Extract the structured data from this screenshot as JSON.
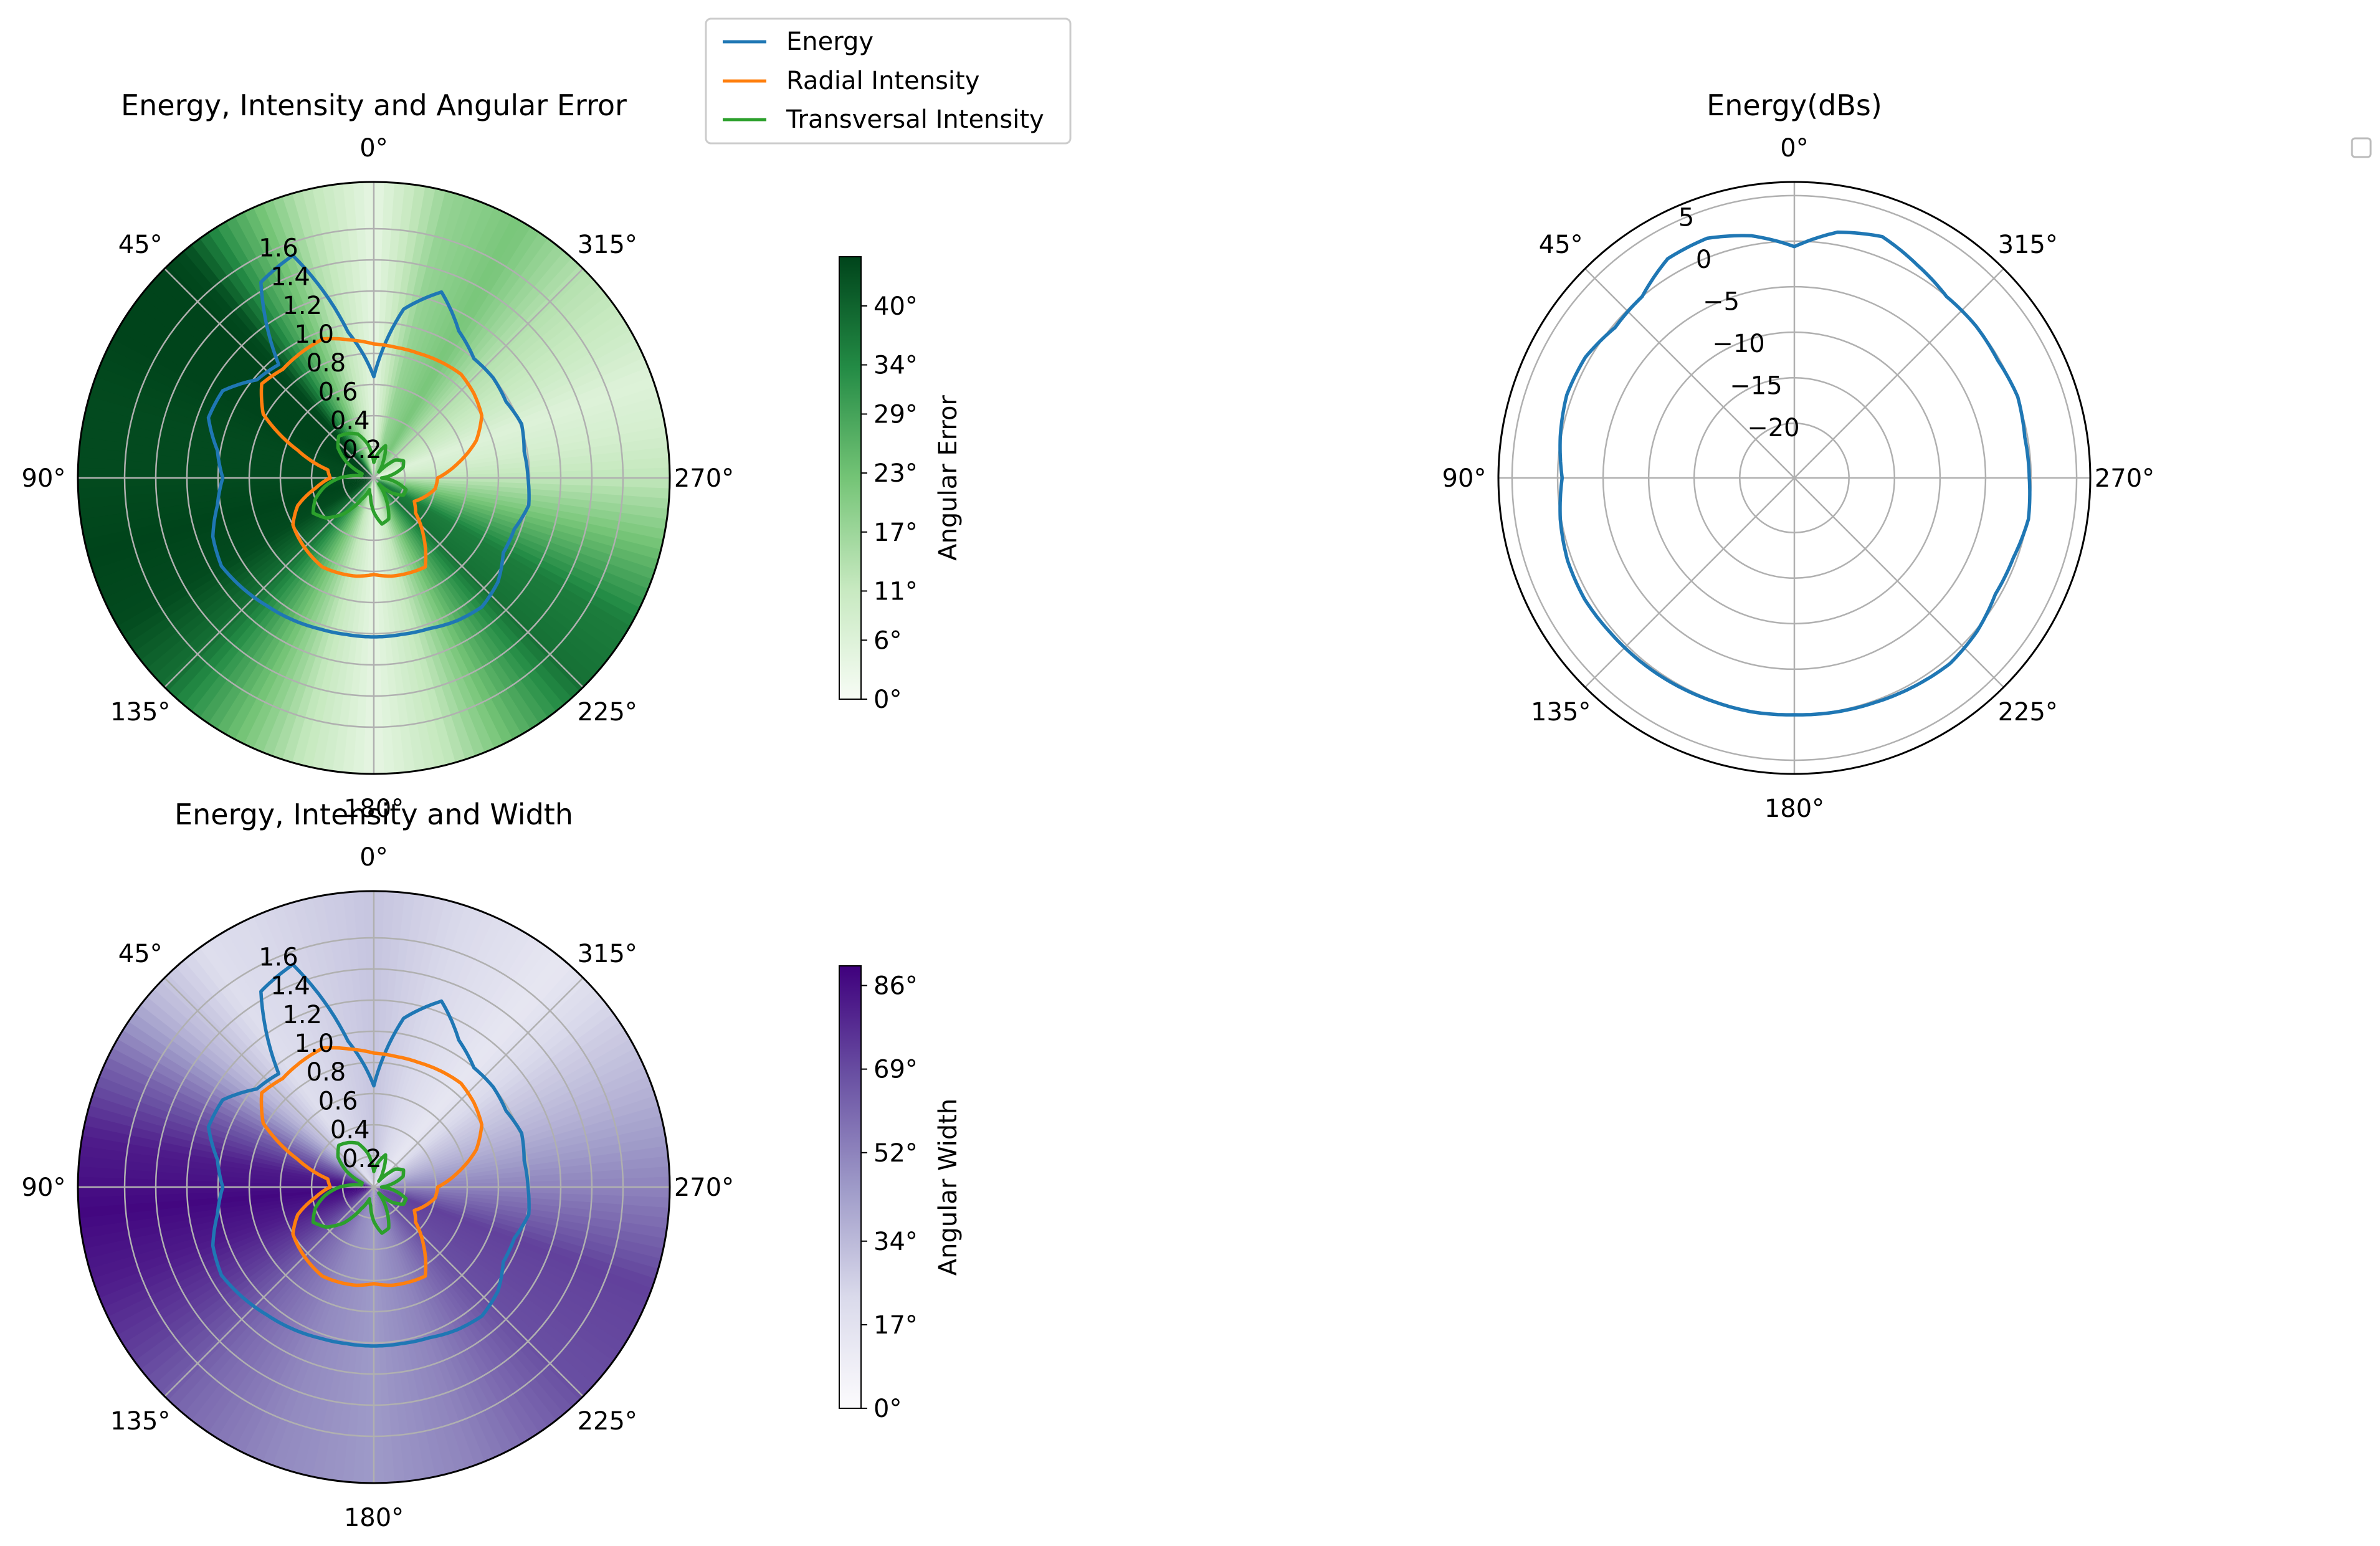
{
  "colors": {
    "energy": "#1f77b4",
    "radial": "#ff7f0e",
    "transversal": "#2ca02c",
    "grid": "#b0b0b0",
    "greens_low": "#f7fcf5",
    "greens_high": "#00441b",
    "purples_low": "#fcfbfd",
    "purples_high": "#3f007d"
  },
  "legend": {
    "entries": [
      "Energy",
      "Radial Intensity",
      "Transversal Intensity"
    ],
    "placement": "top-center"
  },
  "chart_data": [
    {
      "type": "polar-line-heatmap",
      "title": "Energy, Intensity and Angular Error",
      "angle_ticks": [
        "0°",
        "45°",
        "90°",
        "135°",
        "180°",
        "225°",
        "270°",
        "315°"
      ],
      "theta_direction": "counterclockwise",
      "theta_zero": "top",
      "radial_ticks": [
        "0.2",
        "0.4",
        "0.6",
        "0.8",
        "1.0",
        "1.2",
        "1.4",
        "1.6"
      ],
      "rlim": [
        0,
        1.9
      ],
      "grid": true,
      "series": [
        {
          "name": "Energy",
          "curve": "energy"
        },
        {
          "name": "Radial Intensity",
          "curve": "radial"
        },
        {
          "name": "Transversal Intensity",
          "curve": "transversal"
        }
      ],
      "background": {
        "colormap": "Greens",
        "angle_deg": [
          0,
          15,
          30,
          40,
          50,
          60,
          75,
          90,
          105,
          120,
          135,
          150,
          165,
          180,
          195,
          210,
          225,
          240,
          255,
          270,
          280,
          290,
          300,
          315,
          330,
          345,
          360
        ],
        "values_deg": [
          4,
          14,
          30,
          44,
          46,
          45,
          44,
          44,
          45,
          44,
          38,
          25,
          12,
          4,
          12,
          26,
          38,
          36,
          24,
          12,
          8,
          6,
          10,
          14,
          22,
          18,
          4
        ]
      },
      "colorbar": {
        "label": "Angular Error",
        "ticks": [
          "0°",
          "6°",
          "11°",
          "17°",
          "23°",
          "29°",
          "34°",
          "40°"
        ],
        "range": [
          0,
          45
        ]
      }
    },
    {
      "type": "polar-line",
      "title": "Energy(dBs)",
      "angle_ticks": [
        "0°",
        "45°",
        "90°",
        "135°",
        "180°",
        "225°",
        "270°",
        "315°"
      ],
      "theta_direction": "counterclockwise",
      "theta_zero": "top",
      "radial_ticks": [
        "5",
        "0",
        "−5",
        "−10",
        "−15",
        "−20"
      ],
      "radial_values": [
        5,
        0,
        -5,
        -10,
        -15,
        -20
      ],
      "rlim": [
        -26,
        6.5
      ],
      "grid": true,
      "series": [
        {
          "curve": "energy_db"
        }
      ]
    },
    {
      "type": "polar-line-heatmap",
      "title": "Energy, Intensity and Width",
      "angle_ticks": [
        "0°",
        "45°",
        "90°",
        "135°",
        "180°",
        "225°",
        "270°",
        "315°"
      ],
      "theta_direction": "counterclockwise",
      "theta_zero": "top",
      "radial_ticks": [
        "0.2",
        "0.4",
        "0.6",
        "0.8",
        "1.0",
        "1.2",
        "1.4",
        "1.6"
      ],
      "rlim": [
        0,
        1.9
      ],
      "grid": true,
      "series": [
        {
          "name": "Energy",
          "curve": "energy"
        },
        {
          "name": "Radial Intensity",
          "curve": "radial"
        },
        {
          "name": "Transversal Intensity",
          "curve": "transversal"
        }
      ],
      "background": {
        "colormap": "Purples",
        "angle_deg": [
          0,
          20,
          35,
          50,
          65,
          80,
          95,
          110,
          125,
          140,
          160,
          180,
          200,
          225,
          250,
          270,
          290,
          305,
          320,
          335,
          350,
          360
        ],
        "values_deg": [
          30,
          24,
          20,
          35,
          62,
          82,
          88,
          82,
          72,
          60,
          50,
          45,
          52,
          68,
          72,
          52,
          36,
          26,
          14,
          20,
          26,
          30
        ]
      },
      "colorbar": {
        "label": "Angular Width",
        "ticks": [
          "0°",
          "17°",
          "34°",
          "52°",
          "69°",
          "86°"
        ],
        "range": [
          0,
          90
        ]
      }
    }
  ],
  "curves": {
    "angle_deg": [
      0,
      10,
      20,
      30,
      40,
      50,
      60,
      70,
      80,
      90,
      100,
      110,
      120,
      130,
      140,
      150,
      160,
      170,
      180,
      190,
      200,
      210,
      220,
      230,
      240,
      250,
      260,
      270,
      280,
      290,
      300,
      310,
      320,
      330,
      340,
      350,
      360
    ],
    "energy": [
      0.65,
      0.95,
      1.52,
      1.45,
      0.95,
      0.98,
      1.12,
      1.13,
      1.02,
      0.97,
      1.02,
      1.1,
      1.13,
      1.1,
      1.07,
      1.05,
      1.03,
      1.02,
      1.02,
      1.02,
      1.03,
      1.06,
      1.08,
      1.04,
      0.96,
      0.96,
      1.01,
      0.99,
      0.98,
      1.01,
      0.98,
      1.0,
      1.0,
      1.09,
      1.27,
      1.1,
      0.65
    ],
    "radial": [
      0.86,
      0.9,
      0.95,
      0.93,
      0.91,
      0.94,
      0.82,
      0.52,
      0.3,
      0.28,
      0.38,
      0.52,
      0.6,
      0.62,
      0.64,
      0.66,
      0.65,
      0.64,
      0.62,
      0.64,
      0.65,
      0.66,
      0.5,
      0.35,
      0.3,
      0.35,
      0.4,
      0.41,
      0.55,
      0.7,
      0.8,
      0.84,
      0.87,
      0.86,
      0.85,
      0.85,
      0.86
    ],
    "transversal": [
      0.1,
      0.22,
      0.3,
      0.33,
      0.35,
      0.3,
      0.2,
      0.08,
      0.08,
      0.22,
      0.32,
      0.4,
      0.45,
      0.4,
      0.3,
      0.16,
      0.08,
      0.12,
      0.22,
      0.3,
      0.28,
      0.16,
      0.05,
      0.15,
      0.22,
      0.22,
      0.14,
      0.05,
      0.12,
      0.2,
      0.22,
      0.18,
      0.05,
      0.12,
      0.22,
      0.16,
      0.1
    ],
    "energy_db": [
      -0.6,
      1.0,
      2.0,
      1.8,
      0.0,
      -0.3,
      0.5,
      0.6,
      0.1,
      -0.5,
      0.1,
      0.5,
      0.6,
      0.4,
      0.3,
      0.2,
      0.1,
      0.1,
      0.0,
      0.1,
      0.2,
      0.4,
      0.6,
      0.2,
      -0.5,
      -0.4,
      0.1,
      -0.2,
      -0.3,
      0.1,
      -0.2,
      0.0,
      0.0,
      1.0,
      2.2,
      1.4,
      -0.6
    ]
  }
}
